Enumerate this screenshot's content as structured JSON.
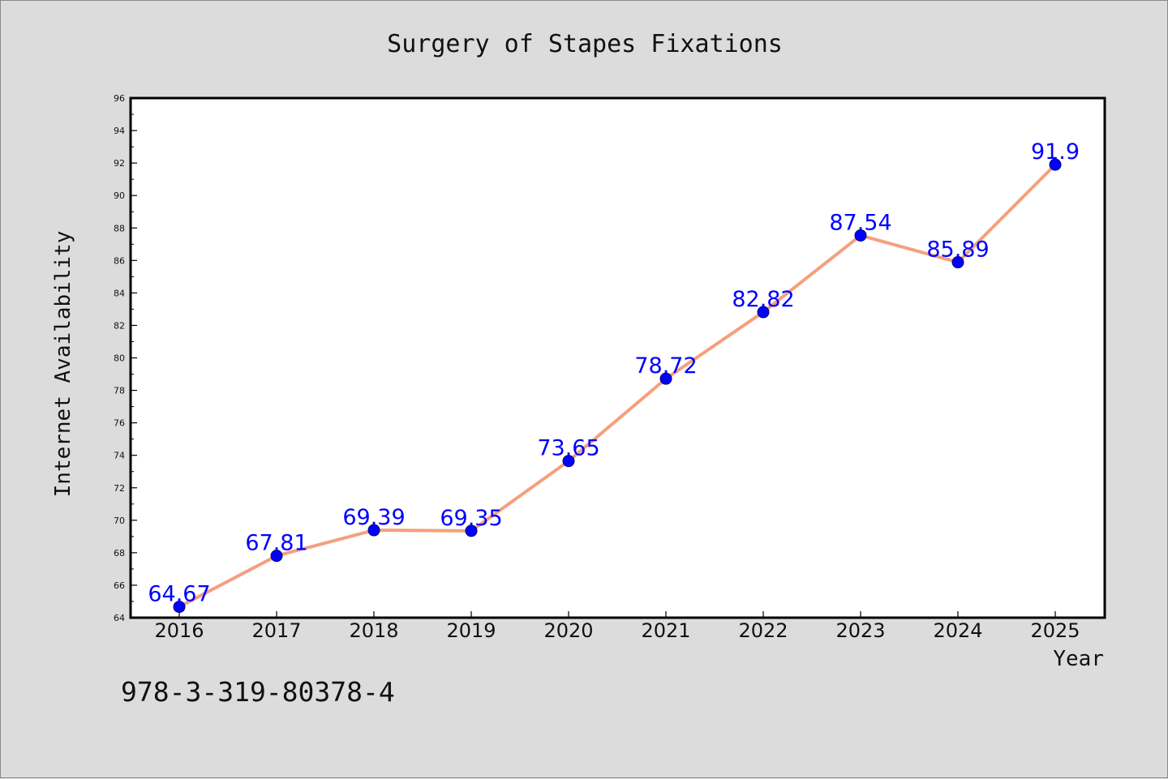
{
  "chart_data": {
    "type": "line",
    "title": "Surgery of Stapes Fixations",
    "xlabel": "Year",
    "ylabel": "Internet Availability",
    "categories": [
      "2016",
      "2017",
      "2018",
      "2019",
      "2020",
      "2021",
      "2022",
      "2023",
      "2024",
      "2025"
    ],
    "series": [
      {
        "values": [
          64.67,
          67.81,
          69.39,
          69.35,
          73.65,
          78.72,
          82.82,
          87.54,
          85.89,
          91.9
        ],
        "labels": [
          "64.67",
          "67.81",
          "69.39",
          "69.35",
          "73.65",
          "78.72",
          "82.82",
          "87.54",
          "85.89",
          "91.9"
        ]
      }
    ],
    "ylim": [
      64,
      96
    ],
    "yticks": [
      64,
      66,
      68,
      70,
      72,
      74,
      76,
      78,
      80,
      82,
      84,
      86,
      88,
      90,
      92,
      94,
      96
    ],
    "grid": false,
    "legend": "none",
    "colors": {
      "line": "#f4a07e",
      "marker": "#0000ff",
      "data_label": "#0000ff",
      "background": "#dcdcdc",
      "plot_area": "#ffffff"
    }
  },
  "footer_text": "978-3-319-80378-4"
}
